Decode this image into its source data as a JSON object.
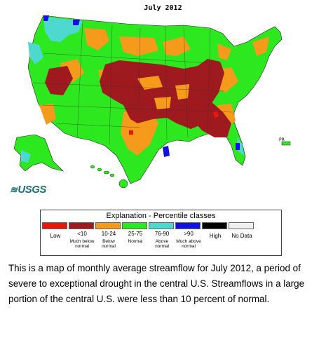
{
  "map": {
    "title": "July 2012",
    "logo": "USGS",
    "inset_label": "PR",
    "colors": {
      "low": "#e8170e",
      "much_below": "#9e1a1e",
      "below": "#f59a1a",
      "normal": "#2ee81f",
      "above": "#4ed9d0",
      "much_above": "#1010e0",
      "high": "#000000",
      "no_data": "#f0f0f0"
    }
  },
  "legend": {
    "title": "Explanation - Percentile classes",
    "classes": [
      {
        "range": "",
        "label": "Low",
        "color": "#e8170e"
      },
      {
        "range": "<10",
        "label": "Much below normal",
        "color": "#9e1a1e"
      },
      {
        "range": "10-24",
        "label": "Below normal",
        "color": "#f59a1a"
      },
      {
        "range": "25-75",
        "label": "Normal",
        "color": "#2ee81f"
      },
      {
        "range": "76-90",
        "label": "Above normal",
        "color": "#4ed9d0"
      },
      {
        "range": ">90",
        "label": "Much above normal",
        "color": "#1010e0"
      },
      {
        "range": "",
        "label": "High",
        "color": "#000000"
      },
      {
        "range": "",
        "label": "No Data",
        "color": "#f0f0f0"
      }
    ]
  },
  "caption": "This is a map of monthly average streamflow for July 2012, a period of severe to exceptional drought in the central U.S. Streamflows in a large portion of the central U.S. were less than 10 percent of normal."
}
